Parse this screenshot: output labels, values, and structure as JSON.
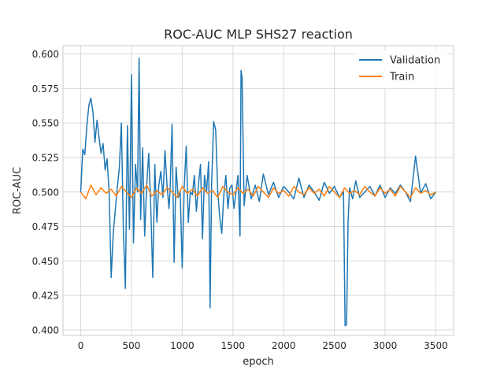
{
  "chart_data": {
    "type": "line",
    "title": "ROC-AUC MLP SHS27 reaction",
    "xlabel": "epoch",
    "ylabel": "ROC-AUC",
    "xlim": [
      -175,
      3675
    ],
    "ylim": [
      0.396,
      0.606
    ],
    "xticks": [
      0,
      500,
      1000,
      1500,
      2000,
      2500,
      3000,
      3500
    ],
    "xtick_labels": [
      "0",
      "500",
      "1000",
      "1500",
      "2000",
      "2500",
      "3000",
      "3500"
    ],
    "yticks": [
      0.4,
      0.425,
      0.45,
      0.475,
      0.5,
      0.525,
      0.55,
      0.575,
      0.6
    ],
    "ytick_labels": [
      "0.400",
      "0.425",
      "0.450",
      "0.475",
      "0.500",
      "0.525",
      "0.550",
      "0.575",
      "0.600"
    ],
    "grid": true,
    "legend_position": "top-right",
    "series": [
      {
        "name": "Validation",
        "color": "#1f77b4",
        "x": [
          0,
          20,
          40,
          60,
          80,
          100,
          120,
          140,
          160,
          180,
          200,
          220,
          240,
          260,
          280,
          300,
          320,
          340,
          360,
          380,
          400,
          420,
          440,
          460,
          480,
          500,
          520,
          540,
          560,
          575,
          590,
          610,
          630,
          650,
          670,
          690,
          710,
          730,
          750,
          770,
          790,
          810,
          830,
          850,
          870,
          880,
          900,
          920,
          940,
          960,
          980,
          1000,
          1020,
          1040,
          1060,
          1080,
          1100,
          1120,
          1140,
          1160,
          1180,
          1200,
          1220,
          1240,
          1260,
          1275,
          1290,
          1310,
          1330,
          1350,
          1370,
          1390,
          1410,
          1430,
          1450,
          1470,
          1490,
          1510,
          1530,
          1550,
          1570,
          1580,
          1590,
          1610,
          1640,
          1680,
          1720,
          1760,
          1800,
          1850,
          1900,
          1950,
          2000,
          2050,
          2100,
          2150,
          2200,
          2250,
          2300,
          2350,
          2400,
          2450,
          2500,
          2550,
          2590,
          2605,
          2620,
          2635,
          2650,
          2680,
          2710,
          2750,
          2800,
          2850,
          2900,
          2950,
          3000,
          3050,
          3100,
          3150,
          3200,
          3250,
          3300,
          3350,
          3400,
          3450,
          3500
        ],
        "values": [
          0.5,
          0.531,
          0.527,
          0.548,
          0.563,
          0.568,
          0.558,
          0.536,
          0.552,
          0.54,
          0.528,
          0.535,
          0.516,
          0.524,
          0.5,
          0.438,
          0.47,
          0.486,
          0.503,
          0.517,
          0.55,
          0.472,
          0.43,
          0.548,
          0.473,
          0.585,
          0.463,
          0.52,
          0.5,
          0.597,
          0.48,
          0.532,
          0.468,
          0.505,
          0.528,
          0.49,
          0.438,
          0.52,
          0.478,
          0.505,
          0.515,
          0.496,
          0.53,
          0.505,
          0.488,
          0.5,
          0.549,
          0.449,
          0.518,
          0.496,
          0.5,
          0.445,
          0.505,
          0.533,
          0.478,
          0.5,
          0.498,
          0.512,
          0.486,
          0.505,
          0.52,
          0.466,
          0.512,
          0.5,
          0.522,
          0.416,
          0.505,
          0.551,
          0.545,
          0.5,
          0.482,
          0.47,
          0.498,
          0.512,
          0.488,
          0.503,
          0.505,
          0.488,
          0.5,
          0.512,
          0.468,
          0.588,
          0.583,
          0.49,
          0.512,
          0.495,
          0.505,
          0.493,
          0.513,
          0.498,
          0.507,
          0.496,
          0.504,
          0.5,
          0.495,
          0.51,
          0.496,
          0.505,
          0.5,
          0.494,
          0.507,
          0.499,
          0.504,
          0.496,
          0.5,
          0.403,
          0.404,
          0.478,
          0.503,
          0.495,
          0.508,
          0.496,
          0.5,
          0.504,
          0.497,
          0.505,
          0.496,
          0.503,
          0.499,
          0.505,
          0.5,
          0.493,
          0.526,
          0.499,
          0.506,
          0.495,
          0.5
        ]
      },
      {
        "name": "Train",
        "color": "#ff7f0e",
        "x": [
          0,
          50,
          100,
          150,
          200,
          250,
          300,
          350,
          400,
          450,
          500,
          550,
          600,
          650,
          700,
          750,
          800,
          850,
          900,
          950,
          1000,
          1050,
          1100,
          1150,
          1200,
          1250,
          1300,
          1350,
          1400,
          1450,
          1500,
          1550,
          1600,
          1650,
          1700,
          1750,
          1800,
          1850,
          1900,
          1950,
          2000,
          2050,
          2100,
          2150,
          2200,
          2250,
          2300,
          2350,
          2400,
          2450,
          2500,
          2550,
          2600,
          2650,
          2700,
          2750,
          2800,
          2850,
          2900,
          2950,
          3000,
          3050,
          3100,
          3150,
          3200,
          3250,
          3300,
          3350,
          3400,
          3450,
          3500
        ],
        "values": [
          0.5,
          0.495,
          0.505,
          0.498,
          0.503,
          0.499,
          0.502,
          0.497,
          0.504,
          0.5,
          0.496,
          0.503,
          0.499,
          0.505,
          0.497,
          0.501,
          0.498,
          0.503,
          0.5,
          0.496,
          0.504,
          0.499,
          0.502,
          0.497,
          0.503,
          0.499,
          0.501,
          0.496,
          0.504,
          0.5,
          0.498,
          0.503,
          0.499,
          0.502,
          0.497,
          0.504,
          0.5,
          0.496,
          0.503,
          0.499,
          0.501,
          0.497,
          0.504,
          0.5,
          0.498,
          0.503,
          0.499,
          0.502,
          0.497,
          0.504,
          0.5,
          0.496,
          0.503,
          0.499,
          0.501,
          0.498,
          0.504,
          0.5,
          0.497,
          0.503,
          0.499,
          0.502,
          0.497,
          0.504,
          0.5,
          0.496,
          0.503,
          0.499,
          0.501,
          0.498,
          0.5
        ]
      }
    ]
  }
}
